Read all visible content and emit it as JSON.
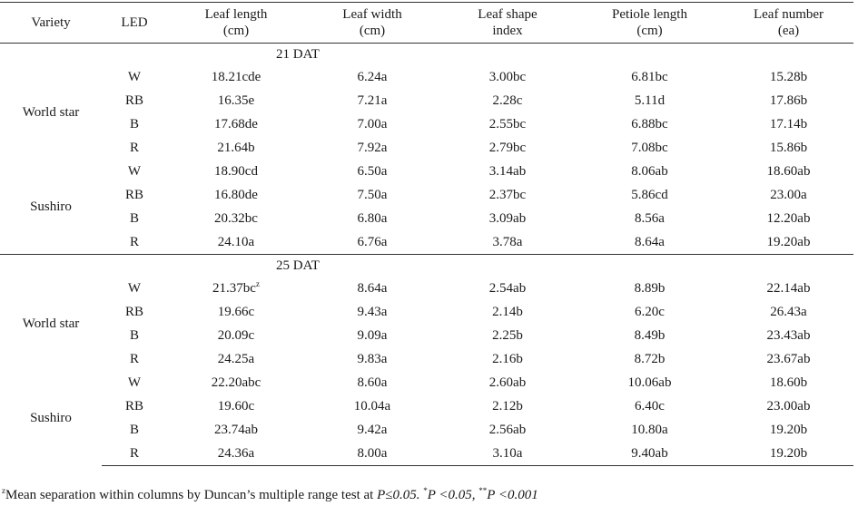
{
  "headers": {
    "variety": "Variety",
    "led": "LED",
    "leaf_length": [
      "Leaf length",
      "(cm)"
    ],
    "leaf_width": [
      "Leaf width",
      "(cm)"
    ],
    "leaf_shape": [
      "Leaf shape",
      "index"
    ],
    "petiole_length": [
      "Petiole length",
      "(cm)"
    ],
    "leaf_number": [
      "Leaf number",
      "(ea)"
    ]
  },
  "sections": [
    {
      "label": "21 DAT",
      "groups": [
        {
          "variety": "World star",
          "rows": [
            {
              "led": "W",
              "length": "18.21cde",
              "width": "6.24a",
              "shape": "3.00bc",
              "petiole": "6.81bc",
              "number": "15.28b"
            },
            {
              "led": "RB",
              "length": "16.35e",
              "width": "7.21a",
              "shape": "2.28c",
              "petiole": "5.11d",
              "number": "17.86b"
            },
            {
              "led": "B",
              "length": "17.68de",
              "width": "7.00a",
              "shape": "2.55bc",
              "petiole": "6.88bc",
              "number": "17.14b"
            },
            {
              "led": "R",
              "length": "21.64b",
              "width": "7.92a",
              "shape": "2.79bc",
              "petiole": "7.08bc",
              "number": "15.86b"
            }
          ]
        },
        {
          "variety": "Sushiro",
          "rows": [
            {
              "led": "W",
              "length": "18.90cd",
              "width": "6.50a",
              "shape": "3.14ab",
              "petiole": "8.06ab",
              "number": "18.60ab"
            },
            {
              "led": "RB",
              "length": "16.80de",
              "width": "7.50a",
              "shape": "2.37bc",
              "petiole": "5.86cd",
              "number": "23.00a"
            },
            {
              "led": "B",
              "length": "20.32bc",
              "width": "6.80a",
              "shape": "3.09ab",
              "petiole": "8.56a",
              "number": "12.20ab"
            },
            {
              "led": "R",
              "length": "24.10a",
              "width": "6.76a",
              "shape": "3.78a",
              "petiole": "8.64a",
              "number": "19.20ab"
            }
          ]
        }
      ]
    },
    {
      "label": "25 DAT",
      "groups": [
        {
          "variety": "World star",
          "rows": [
            {
              "led": "W",
              "length": "21.37bc",
              "length_sup": "z",
              "width": "8.64a",
              "shape": "2.54ab",
              "petiole": "8.89b",
              "number": "22.14ab"
            },
            {
              "led": "RB",
              "length": "19.66c",
              "width": "9.43a",
              "shape": "2.14b",
              "petiole": "6.20c",
              "number": "26.43a"
            },
            {
              "led": "B",
              "length": "20.09c",
              "width": "9.09a",
              "shape": "2.25b",
              "petiole": "8.49b",
              "number": "23.43ab"
            },
            {
              "led": "R",
              "length": "24.25a",
              "width": "9.83a",
              "shape": "2.16b",
              "petiole": "8.72b",
              "number": "23.67ab"
            }
          ]
        },
        {
          "variety": "Sushiro",
          "rows": [
            {
              "led": "W",
              "length": "22.20abc",
              "width": "8.60a",
              "shape": "2.60ab",
              "petiole": "10.06ab",
              "number": "18.60b"
            },
            {
              "led": "RB",
              "length": "19.60c",
              "width": "10.04a",
              "shape": "2.12b",
              "petiole": "6.40c",
              "number": "23.00ab"
            },
            {
              "led": "B",
              "length": "23.74ab",
              "width": "9.42a",
              "shape": "2.56ab",
              "petiole": "10.80a",
              "number": "19.20b"
            },
            {
              "led": "R",
              "length": "24.36a",
              "width": "8.00a",
              "shape": "3.10a",
              "petiole": "9.40ab",
              "number": "19.20b"
            }
          ]
        }
      ]
    }
  ],
  "footnote": {
    "z_mark": "z",
    "text": "Mean separation within columns by Duncan’s multiple range test at ",
    "p1": "P≤0.05.",
    "star1": "*",
    "p2": "P <0.05,",
    "star2": "**",
    "p3": "P <0.001"
  }
}
